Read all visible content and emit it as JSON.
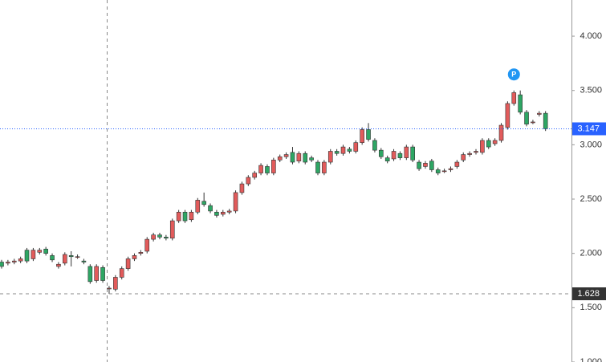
{
  "chart_data": {
    "type": "candlestick",
    "categories": [
      null,
      null,
      null,
      null,
      null,
      null,
      null,
      null,
      null,
      null,
      null,
      null,
      null,
      null,
      null,
      null,
      null,
      null,
      null,
      null,
      null,
      null,
      null,
      null,
      null,
      null,
      null,
      null,
      null,
      null,
      null,
      null,
      null,
      null,
      null,
      null,
      null,
      null,
      null,
      null,
      null,
      null,
      null,
      null,
      null,
      null,
      null,
      null,
      null,
      null,
      null,
      null,
      null,
      null,
      null,
      null,
      null,
      null,
      null,
      null,
      null,
      null,
      null,
      null,
      null,
      null,
      null,
      null,
      null,
      null,
      null,
      null,
      null,
      null,
      null,
      null,
      null,
      null,
      null,
      null,
      null,
      null,
      null,
      null,
      null,
      null,
      null
    ],
    "open": [
      1.92,
      1.91,
      1.92,
      1.93,
      2.03,
      1.95,
      2.01,
      2.04,
      1.98,
      1.88,
      1.91,
      1.98,
      1.97,
      1.93,
      1.88,
      1.75,
      1.87,
      1.68,
      1.67,
      1.78,
      1.86,
      1.95,
      2.0,
      2.02,
      2.13,
      2.17,
      2.15,
      2.14,
      2.3,
      2.38,
      2.31,
      2.38,
      2.48,
      2.44,
      2.38,
      2.36,
      2.38,
      2.39,
      2.56,
      2.64,
      2.7,
      2.74,
      2.8,
      2.74,
      2.86,
      2.89,
      2.93,
      2.85,
      2.92,
      2.88,
      2.84,
      2.74,
      2.84,
      2.94,
      2.92,
      2.96,
      2.94,
      3.02,
      3.14,
      3.04,
      2.95,
      2.88,
      2.87,
      2.92,
      2.88,
      2.98,
      2.84,
      2.8,
      2.85,
      2.77,
      2.76,
      2.77,
      2.8,
      2.86,
      2.91,
      2.93,
      2.93,
      3.04,
      3.01,
      3.04,
      3.16,
      3.38,
      3.46,
      3.3,
      3.21,
      3.28,
      3.29
    ],
    "high": [
      1.94,
      1.94,
      1.95,
      1.97,
      2.05,
      2.05,
      2.05,
      2.06,
      2.0,
      1.92,
      2.01,
      2.02,
      1.99,
      1.95,
      1.9,
      1.9,
      1.89,
      1.7,
      1.8,
      1.88,
      1.97,
      2.0,
      2.03,
      2.15,
      2.19,
      2.19,
      2.17,
      2.32,
      2.4,
      2.4,
      2.4,
      2.51,
      2.56,
      2.46,
      2.4,
      2.4,
      2.41,
      2.58,
      2.66,
      2.72,
      2.76,
      2.83,
      2.82,
      2.88,
      2.91,
      2.93,
      2.98,
      2.94,
      2.94,
      2.9,
      2.86,
      2.86,
      2.96,
      2.96,
      3.0,
      2.98,
      3.04,
      3.16,
      3.2,
      3.06,
      2.97,
      2.9,
      2.96,
      2.94,
      3.0,
      3.0,
      2.86,
      2.85,
      2.87,
      2.79,
      2.78,
      2.8,
      2.86,
      2.93,
      2.94,
      2.96,
      3.06,
      3.06,
      3.06,
      3.2,
      3.4,
      3.5,
      3.5,
      3.32,
      3.23,
      3.31,
      3.31
    ],
    "low": [
      1.86,
      1.89,
      1.9,
      1.91,
      1.91,
      1.93,
      1.99,
      1.98,
      1.92,
      1.86,
      1.89,
      1.88,
      1.95,
      1.9,
      1.72,
      1.73,
      1.73,
      1.628,
      1.65,
      1.76,
      1.84,
      1.93,
      1.98,
      2.0,
      2.11,
      2.13,
      2.12,
      2.12,
      2.28,
      2.28,
      2.29,
      2.36,
      2.43,
      2.37,
      2.33,
      2.34,
      2.36,
      2.37,
      2.54,
      2.62,
      2.68,
      2.72,
      2.72,
      2.72,
      2.84,
      2.87,
      2.82,
      2.83,
      2.82,
      2.84,
      2.72,
      2.72,
      2.82,
      2.9,
      2.9,
      2.92,
      2.92,
      3.0,
      3.03,
      2.93,
      2.87,
      2.83,
      2.85,
      2.86,
      2.86,
      2.84,
      2.76,
      2.78,
      2.75,
      2.72,
      2.74,
      2.75,
      2.78,
      2.84,
      2.89,
      2.91,
      2.91,
      2.96,
      2.99,
      3.02,
      3.14,
      3.36,
      3.28,
      3.17,
      3.19,
      3.26,
      3.127
    ],
    "close": [
      1.88,
      1.92,
      1.93,
      1.95,
      1.93,
      2.03,
      2.03,
      2.0,
      1.94,
      1.9,
      1.99,
      1.97,
      1.97,
      1.92,
      1.74,
      1.88,
      1.75,
      1.68,
      1.78,
      1.86,
      1.95,
      1.98,
      2.01,
      2.13,
      2.17,
      2.15,
      2.14,
      2.3,
      2.38,
      2.3,
      2.38,
      2.49,
      2.45,
      2.39,
      2.35,
      2.38,
      2.39,
      2.56,
      2.64,
      2.7,
      2.74,
      2.81,
      2.74,
      2.86,
      2.89,
      2.91,
      2.84,
      2.92,
      2.84,
      2.86,
      2.74,
      2.84,
      2.94,
      2.92,
      2.98,
      2.94,
      3.02,
      3.14,
      3.05,
      2.95,
      2.89,
      2.85,
      2.94,
      2.88,
      2.98,
      2.86,
      2.78,
      2.83,
      2.77,
      2.74,
      2.76,
      2.78,
      2.84,
      2.91,
      2.92,
      2.94,
      3.04,
      2.98,
      3.04,
      3.18,
      3.38,
      3.48,
      3.3,
      3.19,
      3.21,
      3.29,
      3.147
    ],
    "up_color": "#e25b5b",
    "down_color": "#2ea664",
    "ylim": [
      1.0,
      4.333
    ],
    "yticks": [
      {
        "value": 4,
        "label": "4.000"
      },
      {
        "value": 3.5,
        "label": "3.500"
      },
      {
        "value": 3,
        "label": "3.000"
      },
      {
        "value": 2.5,
        "label": "2.500"
      },
      {
        "value": 2,
        "label": "2.000"
      },
      {
        "value": 1.5,
        "label": "1.500"
      },
      {
        "value": 1,
        "label": "1.000"
      }
    ],
    "last_price": 3.147,
    "crosshair_price": 1.628,
    "marker": "P"
  }
}
